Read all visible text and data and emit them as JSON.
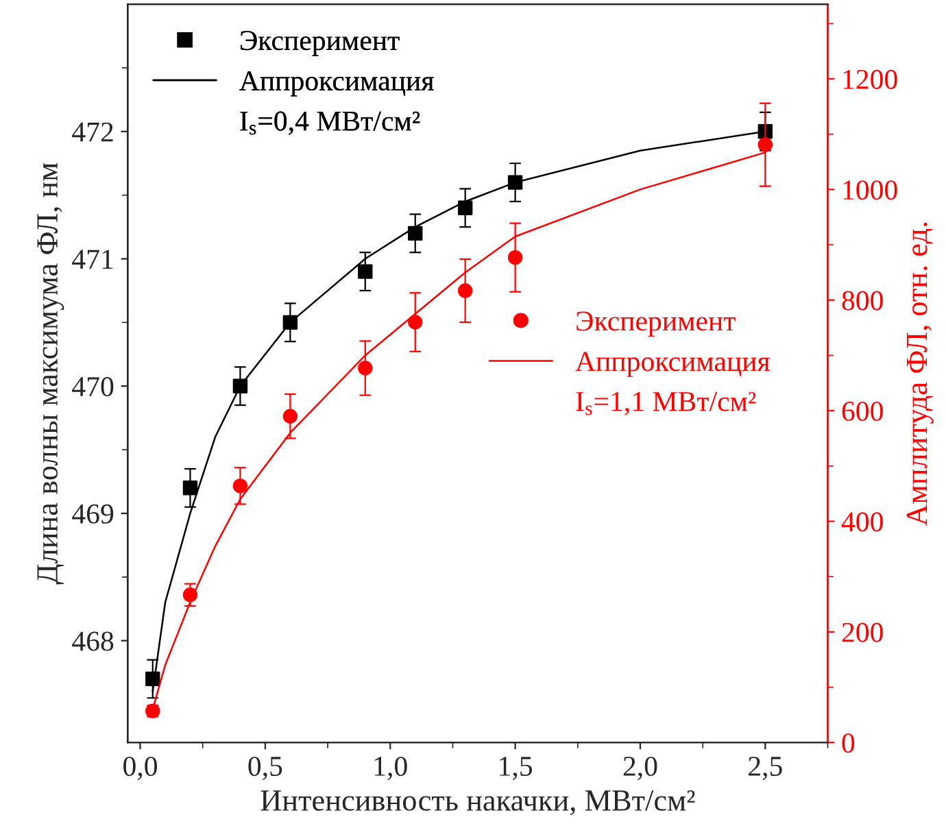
{
  "chart_data": {
    "type": "scatter",
    "xlabel": "Интенсивность накачки, МВт/см²",
    "ylabel": "Длина волны максимума ФЛ, нм",
    "y2label": "Амплитуда ФЛ, отн. ед.",
    "xlim": [
      -0.05,
      2.75
    ],
    "xticks": [
      {
        "value": 0,
        "label": "0,0"
      },
      {
        "value": 0.5,
        "label": "0,5"
      },
      {
        "value": 1.0,
        "label": "1,0"
      },
      {
        "value": 1.5,
        "label": "1,5"
      },
      {
        "value": 2.0,
        "label": "2,0"
      },
      {
        "value": 2.5,
        "label": "2,5"
      }
    ],
    "ylim": [
      467.2,
      473.0
    ],
    "yticks": [
      468,
      469,
      470,
      471,
      472
    ],
    "y2lim": [
      0,
      1335
    ],
    "y2ticks": [
      0,
      200,
      400,
      600,
      800,
      1000,
      1200
    ],
    "grid": false,
    "legend": "top left",
    "series": [
      {
        "name": "Эксперимент",
        "marker": "square",
        "color": "#000000",
        "x": [
          0.05,
          0.2,
          0.4,
          0.6,
          0.9,
          1.1,
          1.3,
          1.5,
          2.5
        ],
        "values": [
          467.7,
          469.2,
          470.0,
          470.5,
          470.9,
          471.2,
          471.4,
          471.6,
          472.0
        ],
        "errors": [
          0.15,
          0.15,
          0.15,
          0.15,
          0.15,
          0.15,
          0.15,
          0.15,
          0.15
        ]
      },
      {
        "name": "Аппроксимация",
        "type": "line",
        "color": "#000000",
        "x": [
          0.05,
          0.1,
          0.2,
          0.3,
          0.4,
          0.6,
          0.9,
          1.1,
          1.3,
          1.5,
          2.0,
          2.5
        ],
        "values": [
          467.6,
          468.3,
          469.0,
          469.6,
          470.0,
          470.5,
          471.0,
          471.25,
          471.45,
          471.6,
          471.85,
          472.0
        ]
      },
      {
        "name": "Эксперимент",
        "marker": "circle",
        "axis": "y2",
        "color": "#ff0000",
        "x": [
          0.05,
          0.2,
          0.4,
          0.6,
          0.9,
          1.1,
          1.3,
          1.5,
          2.5
        ],
        "values": [
          57,
          267,
          464,
          590,
          677,
          760,
          817,
          877,
          1081
        ],
        "errors": [
          10,
          20,
          33,
          40,
          49,
          53,
          57,
          62,
          75
        ]
      },
      {
        "name": "Аппроксимация",
        "type": "line",
        "axis": "y2",
        "color": "#ff0000",
        "x": [
          0.05,
          0.1,
          0.2,
          0.3,
          0.4,
          0.6,
          0.9,
          1.1,
          1.3,
          1.5,
          2.0,
          2.5
        ],
        "values": [
          60,
          140,
          254,
          355,
          440,
          560,
          700,
          775,
          850,
          915,
          1000,
          1067
        ]
      }
    ],
    "annotations": [
      "I$_{s}$=0,4 МВт/см²",
      "I$_{s}$=1,1 МВт/см²"
    ]
  }
}
